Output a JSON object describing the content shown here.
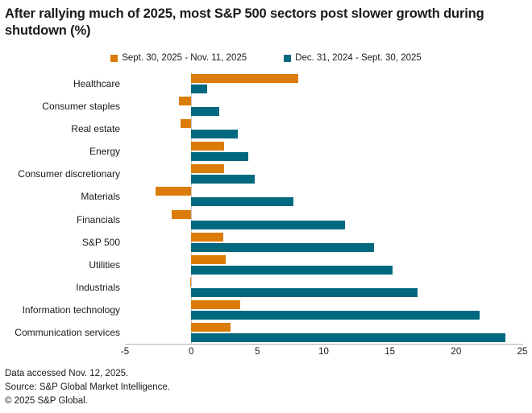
{
  "title": "After rallying much of 2025, most S&P 500 sectors post slower growth during shutdown (%)",
  "chart_data": {
    "type": "bar",
    "orientation": "horizontal",
    "title": "After rallying much of 2025, most S&P 500 sectors post slower growth during shutdown (%)",
    "categories": [
      "Healthcare",
      "Consumer staples",
      "Real estate",
      "Energy",
      "Consumer discretionary",
      "Materials",
      "Financials",
      "S&P 500",
      "Utilities",
      "Industrials",
      "Information technology",
      "Communication services"
    ],
    "series": [
      {
        "name": "Sept. 30, 2025 - Nov. 11, 2025",
        "color": "#DB7C08",
        "values": [
          8.1,
          -0.9,
          -0.8,
          2.5,
          2.5,
          -2.7,
          -1.5,
          2.4,
          2.6,
          -0.1,
          3.7,
          3.0
        ]
      },
      {
        "name": "Dec. 31, 2024 - Sept. 30, 2025",
        "color": "#00697F",
        "values": [
          1.2,
          2.1,
          3.5,
          4.3,
          4.8,
          7.7,
          11.6,
          13.8,
          15.2,
          17.1,
          21.8,
          23.7
        ]
      }
    ],
    "xlim": [
      -5,
      25
    ],
    "xticks": [
      -5,
      0,
      5,
      10,
      15,
      20,
      25
    ],
    "legend_position": "top-center",
    "grid": false,
    "zero_line": true
  },
  "footer": {
    "line1": "Data accessed Nov. 12, 2025.",
    "line2": "Source: S&P Global Market Intelligence.",
    "line3": "© 2025 S&P Global."
  }
}
